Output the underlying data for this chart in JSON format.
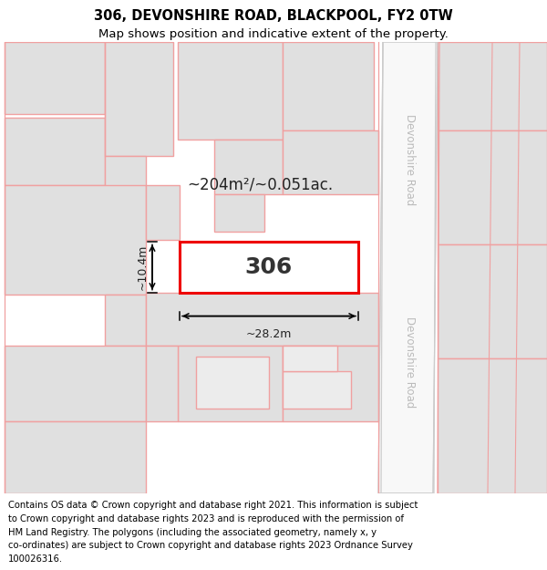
{
  "title_line1": "306, DEVONSHIRE ROAD, BLACKPOOL, FY2 0TW",
  "title_line2": "Map shows position and indicative extent of the property.",
  "footer_lines": [
    "Contains OS data © Crown copyright and database right 2021. This information is subject",
    "to Crown copyright and database rights 2023 and is reproduced with the permission of",
    "HM Land Registry. The polygons (including the associated geometry, namely x, y",
    "co-ordinates) are subject to Crown copyright and database rights 2023 Ordnance Survey",
    "100026316."
  ],
  "map_bg": "#ffffff",
  "highlight_color": "#ee0000",
  "neighbor_face": "#e0e0e0",
  "neighbor_edge": "#f0a0a0",
  "road_label": "Devonshire Road",
  "road_text_color": "#bbbbbb",
  "plot_label": "306",
  "area_label": "~204m²/~0.051ac.",
  "dim_width": "~28.2m",
  "dim_height": "~10.4m",
  "title_fontsize": 10.5,
  "subtitle_fontsize": 9.5,
  "footer_fontsize": 7.2,
  "plot_label_fontsize": 18,
  "area_label_fontsize": 12,
  "dim_fontsize": 9
}
